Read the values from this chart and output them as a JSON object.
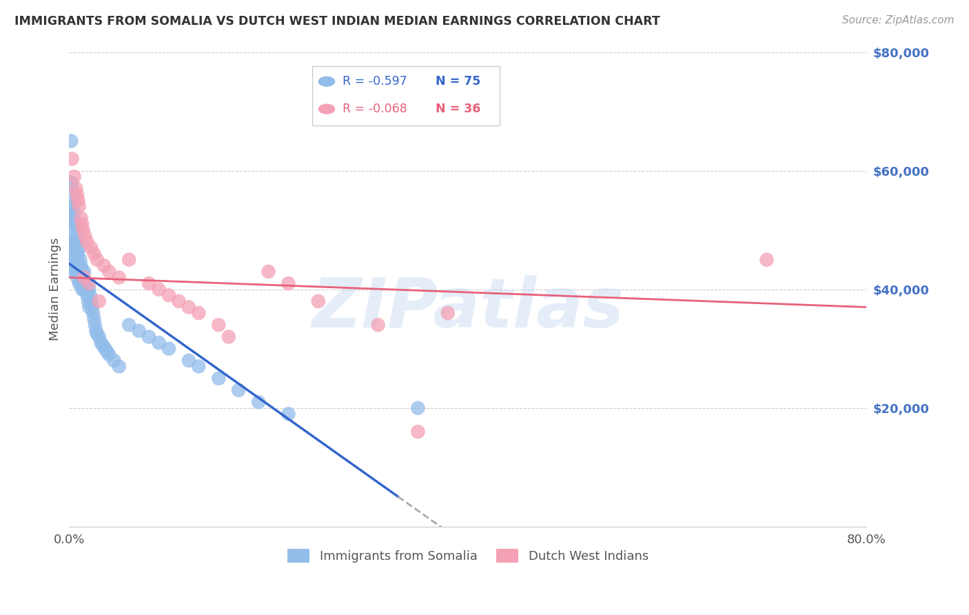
{
  "title": "IMMIGRANTS FROM SOMALIA VS DUTCH WEST INDIAN MEDIAN EARNINGS CORRELATION CHART",
  "source": "Source: ZipAtlas.com",
  "ylabel": "Median Earnings",
  "xlim": [
    0.0,
    0.8
  ],
  "ylim": [
    0,
    80000
  ],
  "yticks": [
    0,
    20000,
    40000,
    60000,
    80000
  ],
  "somalia_R": -0.597,
  "somalia_N": 75,
  "dwi_R": -0.068,
  "dwi_N": 36,
  "somalia_color": "#92bcea",
  "dwi_color": "#f4a0b5",
  "somalia_line_color": "#3366cc",
  "dwi_line_color": "#e8607a",
  "watermark": "ZIPatlas",
  "background_color": "#ffffff",
  "grid_color": "#cccccc",
  "ylabel_color": "#555555",
  "yticklabel_color": "#4472c4",
  "title_color": "#333333",
  "somalia_x": [
    0.001,
    0.001,
    0.002,
    0.002,
    0.002,
    0.003,
    0.003,
    0.003,
    0.003,
    0.003,
    0.004,
    0.004,
    0.004,
    0.004,
    0.005,
    0.005,
    0.005,
    0.005,
    0.006,
    0.006,
    0.006,
    0.007,
    0.007,
    0.007,
    0.008,
    0.008,
    0.008,
    0.009,
    0.009,
    0.01,
    0.01,
    0.01,
    0.011,
    0.011,
    0.012,
    0.012,
    0.013,
    0.013,
    0.014,
    0.015,
    0.015,
    0.016,
    0.017,
    0.018,
    0.019,
    0.02,
    0.02,
    0.021,
    0.022,
    0.023,
    0.024,
    0.025,
    0.026,
    0.027,
    0.028,
    0.03,
    0.032,
    0.034,
    0.036,
    0.038,
    0.04,
    0.045,
    0.05,
    0.06,
    0.07,
    0.08,
    0.09,
    0.1,
    0.12,
    0.13,
    0.15,
    0.17,
    0.19,
    0.22,
    0.35
  ],
  "somalia_y": [
    45000,
    43000,
    65000,
    58000,
    53000,
    57000,
    54000,
    51000,
    48000,
    46000,
    55000,
    52000,
    48000,
    45000,
    53000,
    50000,
    47000,
    44000,
    51000,
    48000,
    45000,
    49000,
    46000,
    43000,
    48000,
    45000,
    42000,
    46000,
    43000,
    47000,
    44000,
    41000,
    45000,
    42000,
    44000,
    41000,
    43000,
    40000,
    42000,
    43000,
    40000,
    41000,
    40000,
    39000,
    38000,
    40000,
    37000,
    39000,
    38000,
    37000,
    36000,
    35000,
    34000,
    33000,
    32500,
    32000,
    31000,
    30500,
    30000,
    29500,
    29000,
    28000,
    27000,
    34000,
    33000,
    32000,
    31000,
    30000,
    28000,
    27000,
    25000,
    23000,
    21000,
    19000,
    20000
  ],
  "dwi_x": [
    0.003,
    0.005,
    0.007,
    0.008,
    0.009,
    0.01,
    0.012,
    0.013,
    0.014,
    0.015,
    0.016,
    0.018,
    0.02,
    0.022,
    0.025,
    0.028,
    0.03,
    0.035,
    0.04,
    0.05,
    0.06,
    0.08,
    0.09,
    0.1,
    0.11,
    0.12,
    0.13,
    0.15,
    0.16,
    0.2,
    0.22,
    0.25,
    0.31,
    0.35,
    0.38,
    0.7
  ],
  "dwi_y": [
    62000,
    59000,
    57000,
    56000,
    55000,
    54000,
    52000,
    51000,
    50000,
    42000,
    49000,
    48000,
    41000,
    47000,
    46000,
    45000,
    38000,
    44000,
    43000,
    42000,
    45000,
    41000,
    40000,
    39000,
    38000,
    37000,
    36000,
    34000,
    32000,
    43000,
    41000,
    38000,
    34000,
    16000,
    36000,
    45000
  ]
}
